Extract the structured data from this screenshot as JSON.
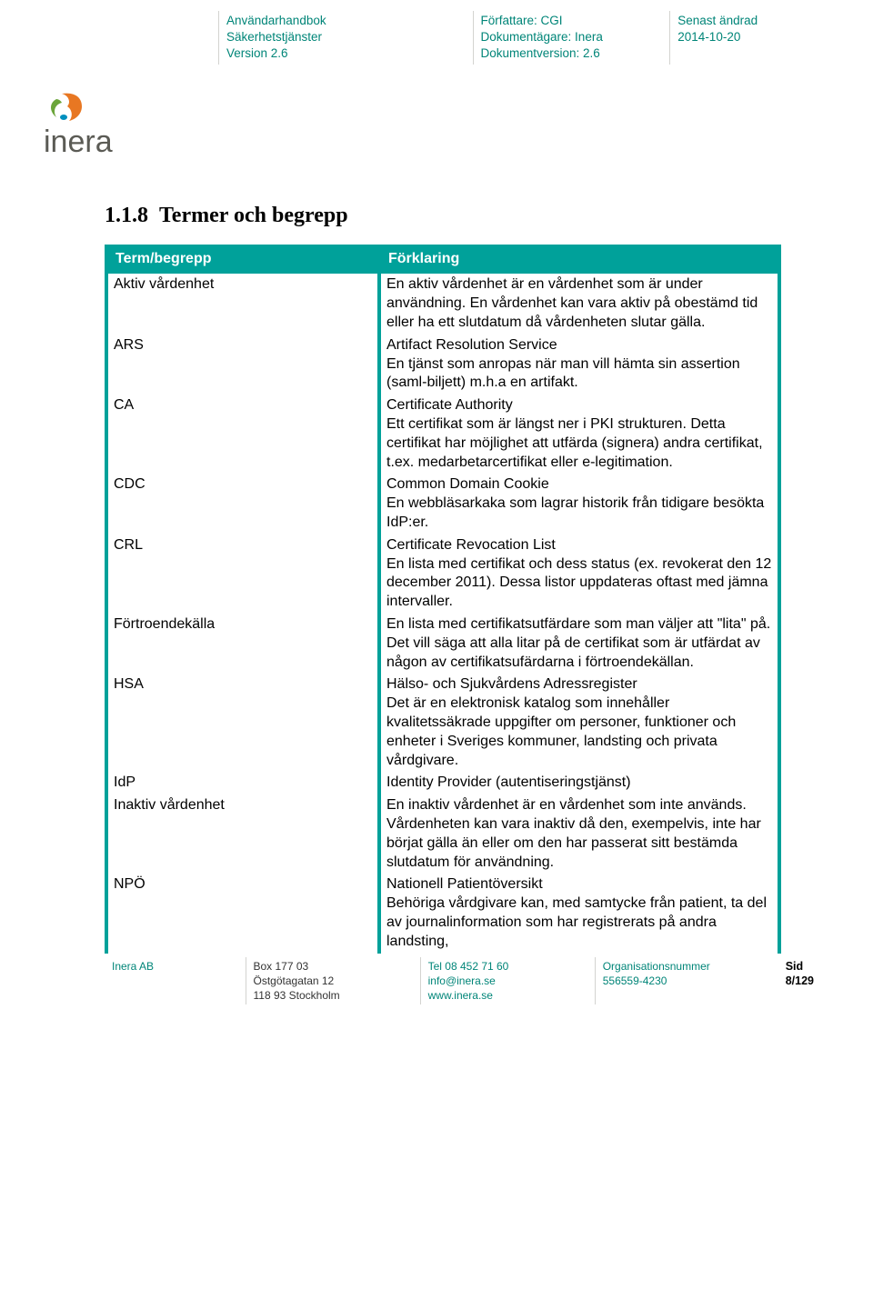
{
  "meta": {
    "col1": {
      "l1": "Användarhandbok",
      "l2": "Säkerhetstjänster",
      "l3": "Version 2.6"
    },
    "col2": {
      "l1": "Författare: CGI",
      "l2": "Dokumentägare: Inera",
      "l3": "Dokumentversion: 2.6"
    },
    "col3": {
      "l1": "Senast ändrad",
      "l2": "2014-10-20"
    }
  },
  "logo_text": "inera",
  "section_number": "1.1.8",
  "section_title": "Termer och begrepp",
  "table": {
    "headers": {
      "c1": "Term/begrepp",
      "c2": "Förklaring"
    },
    "rows": [
      {
        "term": "Aktiv vårdenhet",
        "desc": "En aktiv vårdenhet är en vårdenhet som är under användning. En vårdenhet kan vara aktiv på obestämd tid eller ha ett slutdatum då vårdenheten slutar gälla."
      },
      {
        "term": "ARS",
        "desc": "Artifact Resolution Service\nEn tjänst som anropas när man vill hämta sin assertion (saml-biljett) m.h.a en artifakt."
      },
      {
        "term": "CA",
        "desc": "Certificate Authority\nEtt certifikat som är längst ner i PKI strukturen. Detta certifikat har möjlighet att utfärda (signera) andra certifikat, t.ex. medarbetarcertifikat eller e-legitimation."
      },
      {
        "term": "CDC",
        "desc": "Common Domain Cookie\nEn webbläsarkaka som lagrar historik från tidigare besökta IdP:er."
      },
      {
        "term": "CRL",
        "desc": "Certificate Revocation List\nEn lista med certifikat och dess status (ex. revokerat den 12 december 2011). Dessa listor uppdateras oftast med jämna intervaller."
      },
      {
        "term": "Förtroendekälla",
        "desc": "En lista med certifikatsutfärdare som man väljer att \"lita\" på. Det vill säga att alla litar på de certifikat som är utfärdat av någon av certifikatsufärdarna i förtroendekällan."
      },
      {
        "term": "HSA",
        "desc": "Hälso- och Sjukvårdens Adressregister\nDet är en elektronisk katalog som innehåller kvalitetssäkrade uppgifter om personer, funktioner och enheter i Sveriges kommuner, landsting och privata vårdgivare."
      },
      {
        "term": "IdP",
        "desc": "Identity Provider (autentiseringstjänst)"
      },
      {
        "term": "Inaktiv vårdenhet",
        "desc": "En inaktiv vårdenhet är en vårdenhet som inte används. Vårdenheten kan vara inaktiv då den, exempelvis, inte har börjat gälla än eller om den har passerat sitt bestämda slutdatum för användning."
      },
      {
        "term": "NPÖ",
        "desc": "Nationell Patientöversikt\nBehöriga vårdgivare kan, med samtycke från patient, ta del av journalinformation som har registrerats på andra landsting,"
      }
    ]
  },
  "footer": {
    "company": "Inera AB",
    "address": {
      "l1": "Box 177 03",
      "l2": "Östgötagatan 12",
      "l3": "118 93 Stockholm"
    },
    "contact": {
      "l1": "Tel 08 452 71 60",
      "l2": "info@inera.se",
      "l3": "www.inera.se"
    },
    "org": {
      "l1": "Organisationsnummer",
      "l2": "556559-4230"
    },
    "page": "Sid 8/129"
  },
  "colors": {
    "teal": "#00a19a",
    "teal_text": "#008578",
    "divider": "#d3d3d0",
    "logo_orange": "#e87722",
    "logo_green": "#6ba53a",
    "logo_text": "#5b5b55"
  }
}
